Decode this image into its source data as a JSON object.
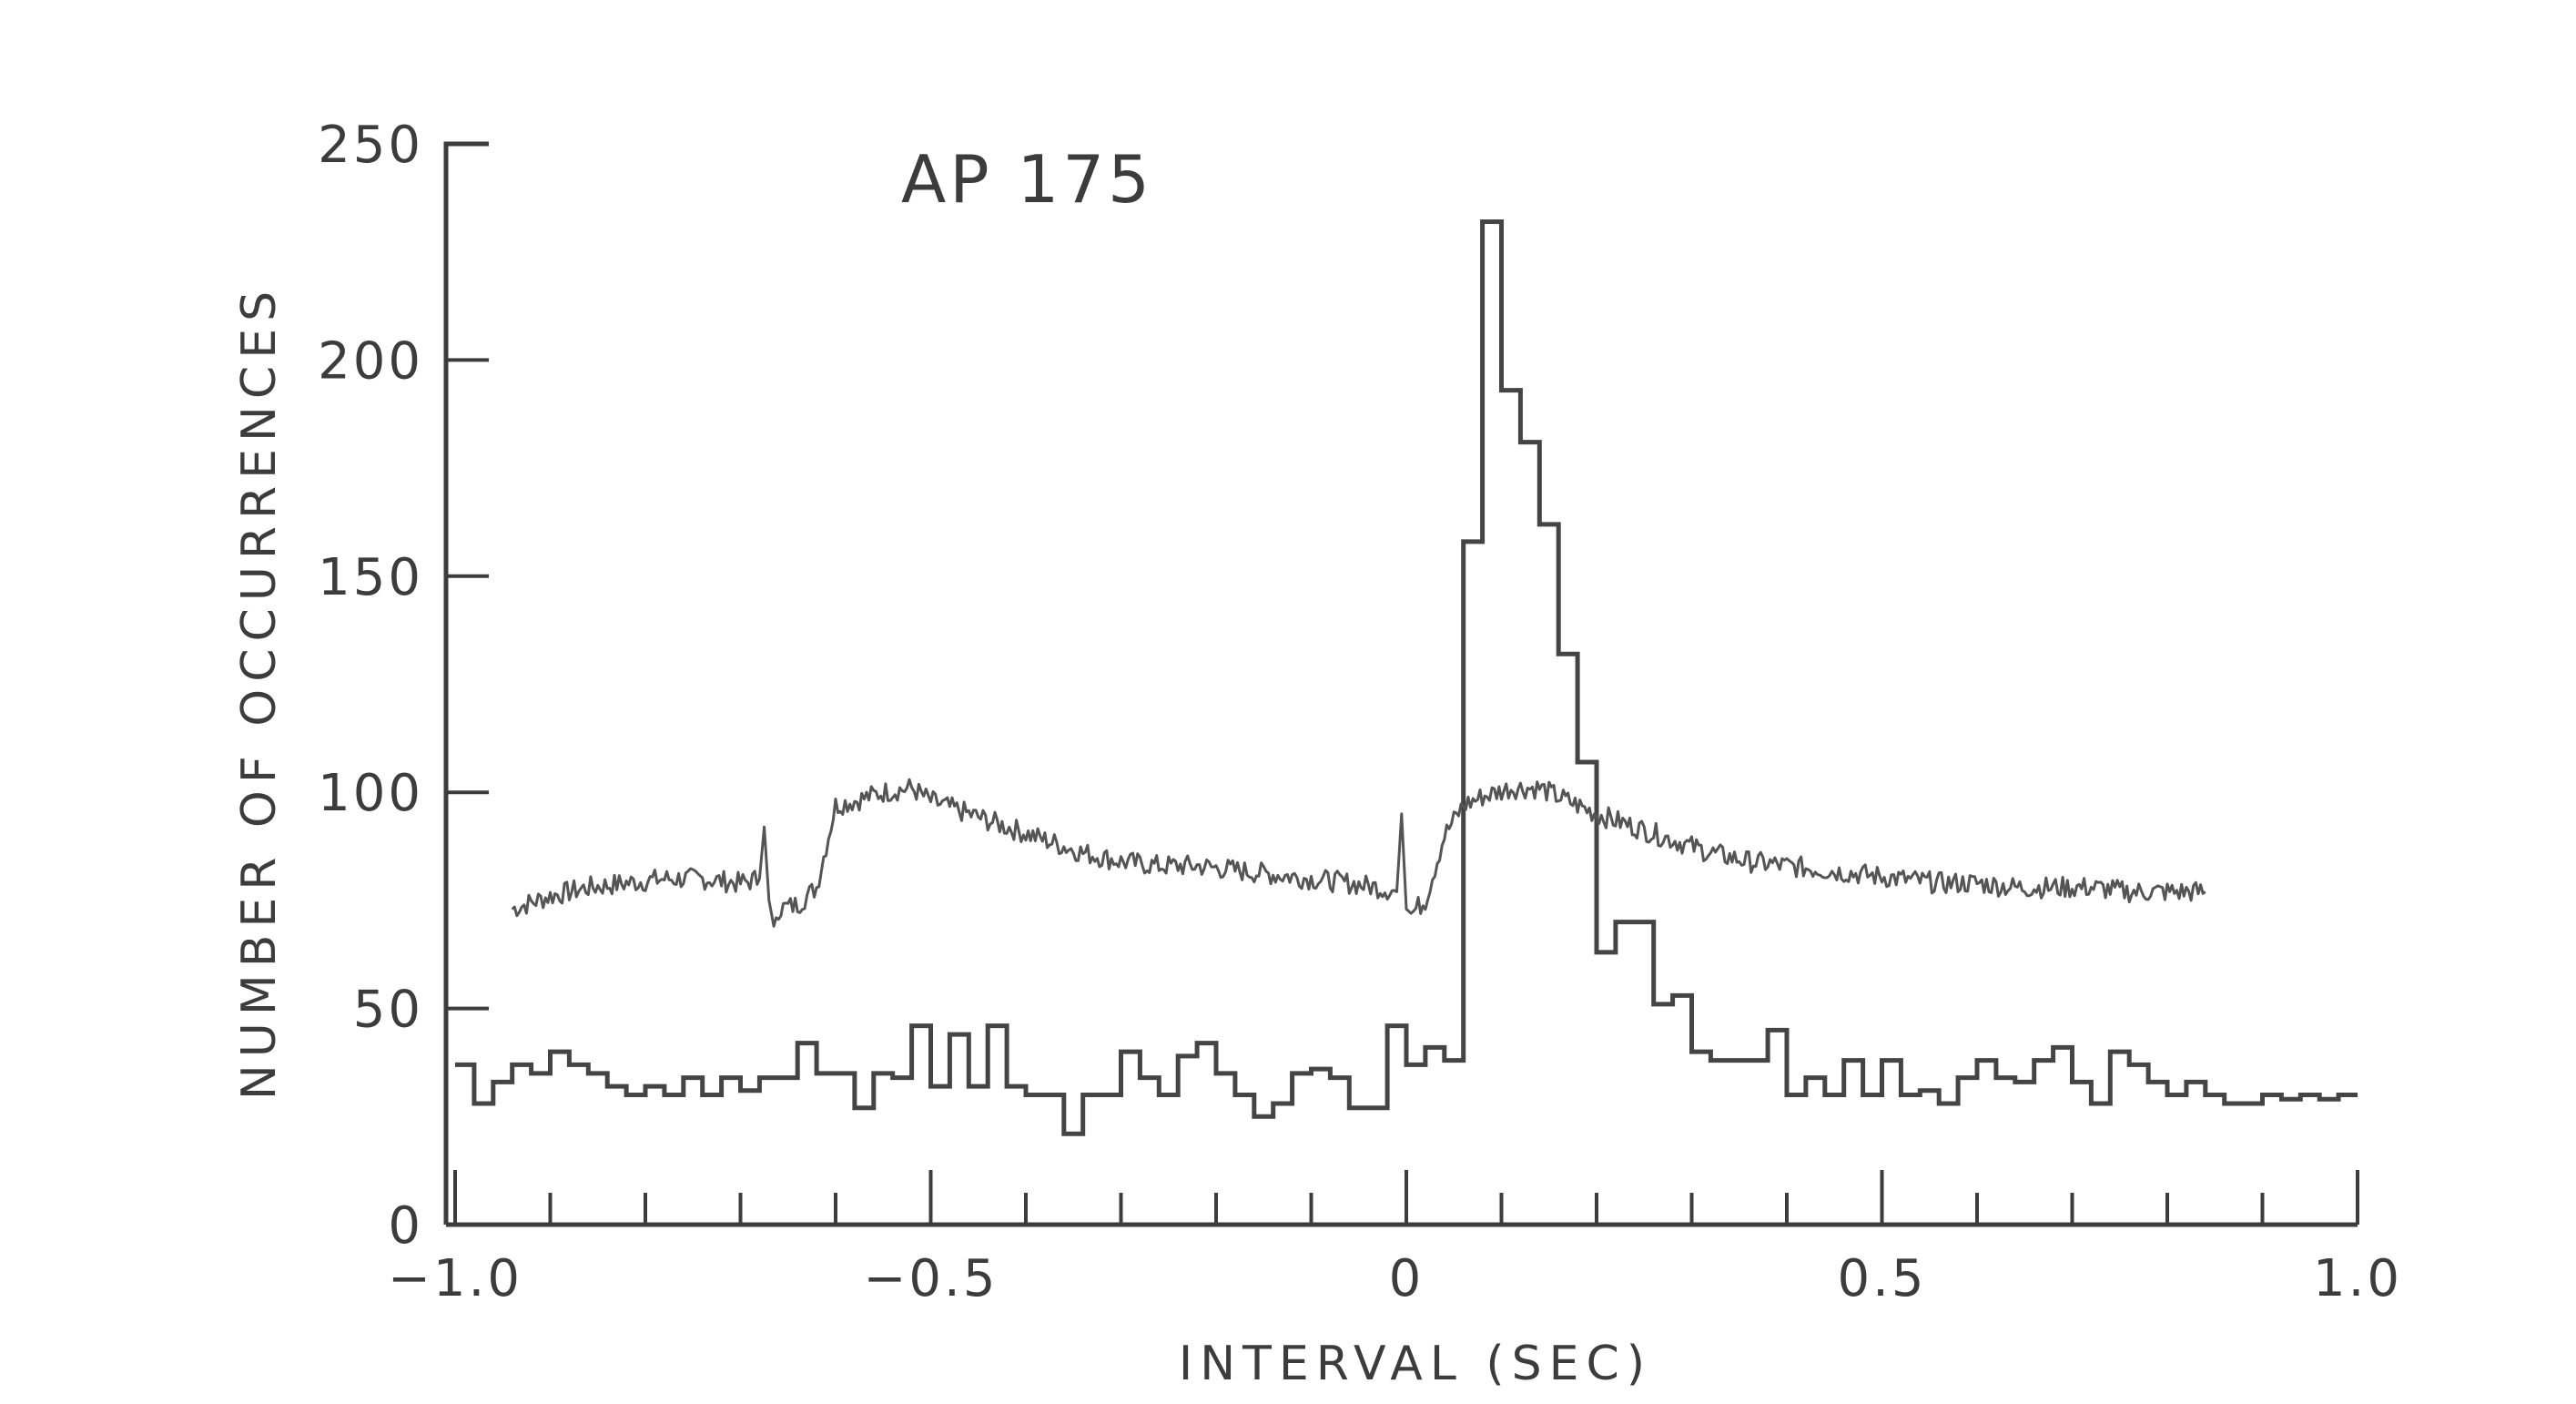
{
  "chart_data": {
    "type": "line",
    "title": "AP 175",
    "xlabel": "INTERVAL (SEC)",
    "ylabel": "NUMBER OF OCCURRENCES",
    "xlim": [
      -1.0,
      1.0
    ],
    "ylim": [
      0,
      250
    ],
    "x_ticks": [
      -1.0,
      -0.5,
      0,
      0.5,
      1.0
    ],
    "x_tick_labels": [
      "−1.0",
      "−0.5",
      "0",
      "0.5",
      "1.0"
    ],
    "y_ticks": [
      0,
      50,
      100,
      150,
      200,
      250
    ],
    "y_tick_labels": [
      "0",
      "50",
      "100",
      "150",
      "200",
      "250"
    ],
    "grid": false,
    "legend": "none",
    "series": [
      {
        "style": "histogram",
        "bin_width": 0.02,
        "x_start": -1.0,
        "values": [
          37,
          28,
          33,
          37,
          35,
          40,
          37,
          35,
          32,
          30,
          32,
          30,
          34,
          30,
          34,
          31,
          34,
          34,
          42,
          35,
          35,
          27,
          35,
          34,
          46,
          32,
          44,
          32,
          46,
          32,
          30,
          30,
          21,
          30,
          30,
          40,
          34,
          30,
          39,
          42,
          35,
          30,
          25,
          28,
          35,
          36,
          34,
          27,
          27,
          46,
          37,
          41,
          38,
          158,
          232,
          193,
          181,
          162,
          132,
          107,
          63,
          70,
          70,
          51,
          53,
          40,
          38,
          38,
          38,
          45,
          30,
          34,
          30,
          38,
          30,
          38,
          30,
          31,
          28,
          34,
          38,
          34,
          33,
          38,
          41,
          33,
          28,
          40,
          37,
          33,
          30,
          33,
          30,
          28,
          28,
          30,
          29,
          30,
          29,
          30
        ]
      },
      {
        "style": "noisy-line",
        "x": [
          -0.94,
          -0.9,
          -0.86,
          -0.82,
          -0.78,
          -0.74,
          -0.7,
          -0.68,
          -0.675,
          -0.67,
          -0.665,
          -0.66,
          -0.64,
          -0.62,
          -0.6,
          -0.58,
          -0.55,
          -0.52,
          -0.5,
          -0.46,
          -0.42,
          -0.38,
          -0.34,
          -0.3,
          -0.26,
          -0.22,
          -0.18,
          -0.14,
          -0.1,
          -0.06,
          -0.03,
          -0.01,
          -0.005,
          0.0,
          0.005,
          0.01,
          0.02,
          0.04,
          0.06,
          0.08,
          0.11,
          0.14,
          0.17,
          0.2,
          0.24,
          0.28,
          0.32,
          0.36,
          0.4,
          0.44,
          0.48,
          0.52,
          0.56,
          0.6,
          0.64,
          0.68,
          0.72,
          0.76,
          0.8,
          0.84
        ],
        "values": [
          73,
          76,
          78,
          79,
          80,
          80,
          79,
          80,
          92,
          75,
          69,
          73,
          74,
          78,
          97,
          98,
          100,
          101,
          98,
          95,
          92,
          89,
          86,
          84,
          83,
          83,
          82,
          81,
          80,
          79,
          78,
          77,
          95,
          73,
          72,
          73,
          75,
          90,
          97,
          99,
          101,
          101,
          98,
          95,
          92,
          89,
          86,
          84,
          83,
          82,
          81,
          80,
          79,
          79,
          78,
          78,
          78,
          77,
          77,
          77
        ]
      }
    ]
  }
}
